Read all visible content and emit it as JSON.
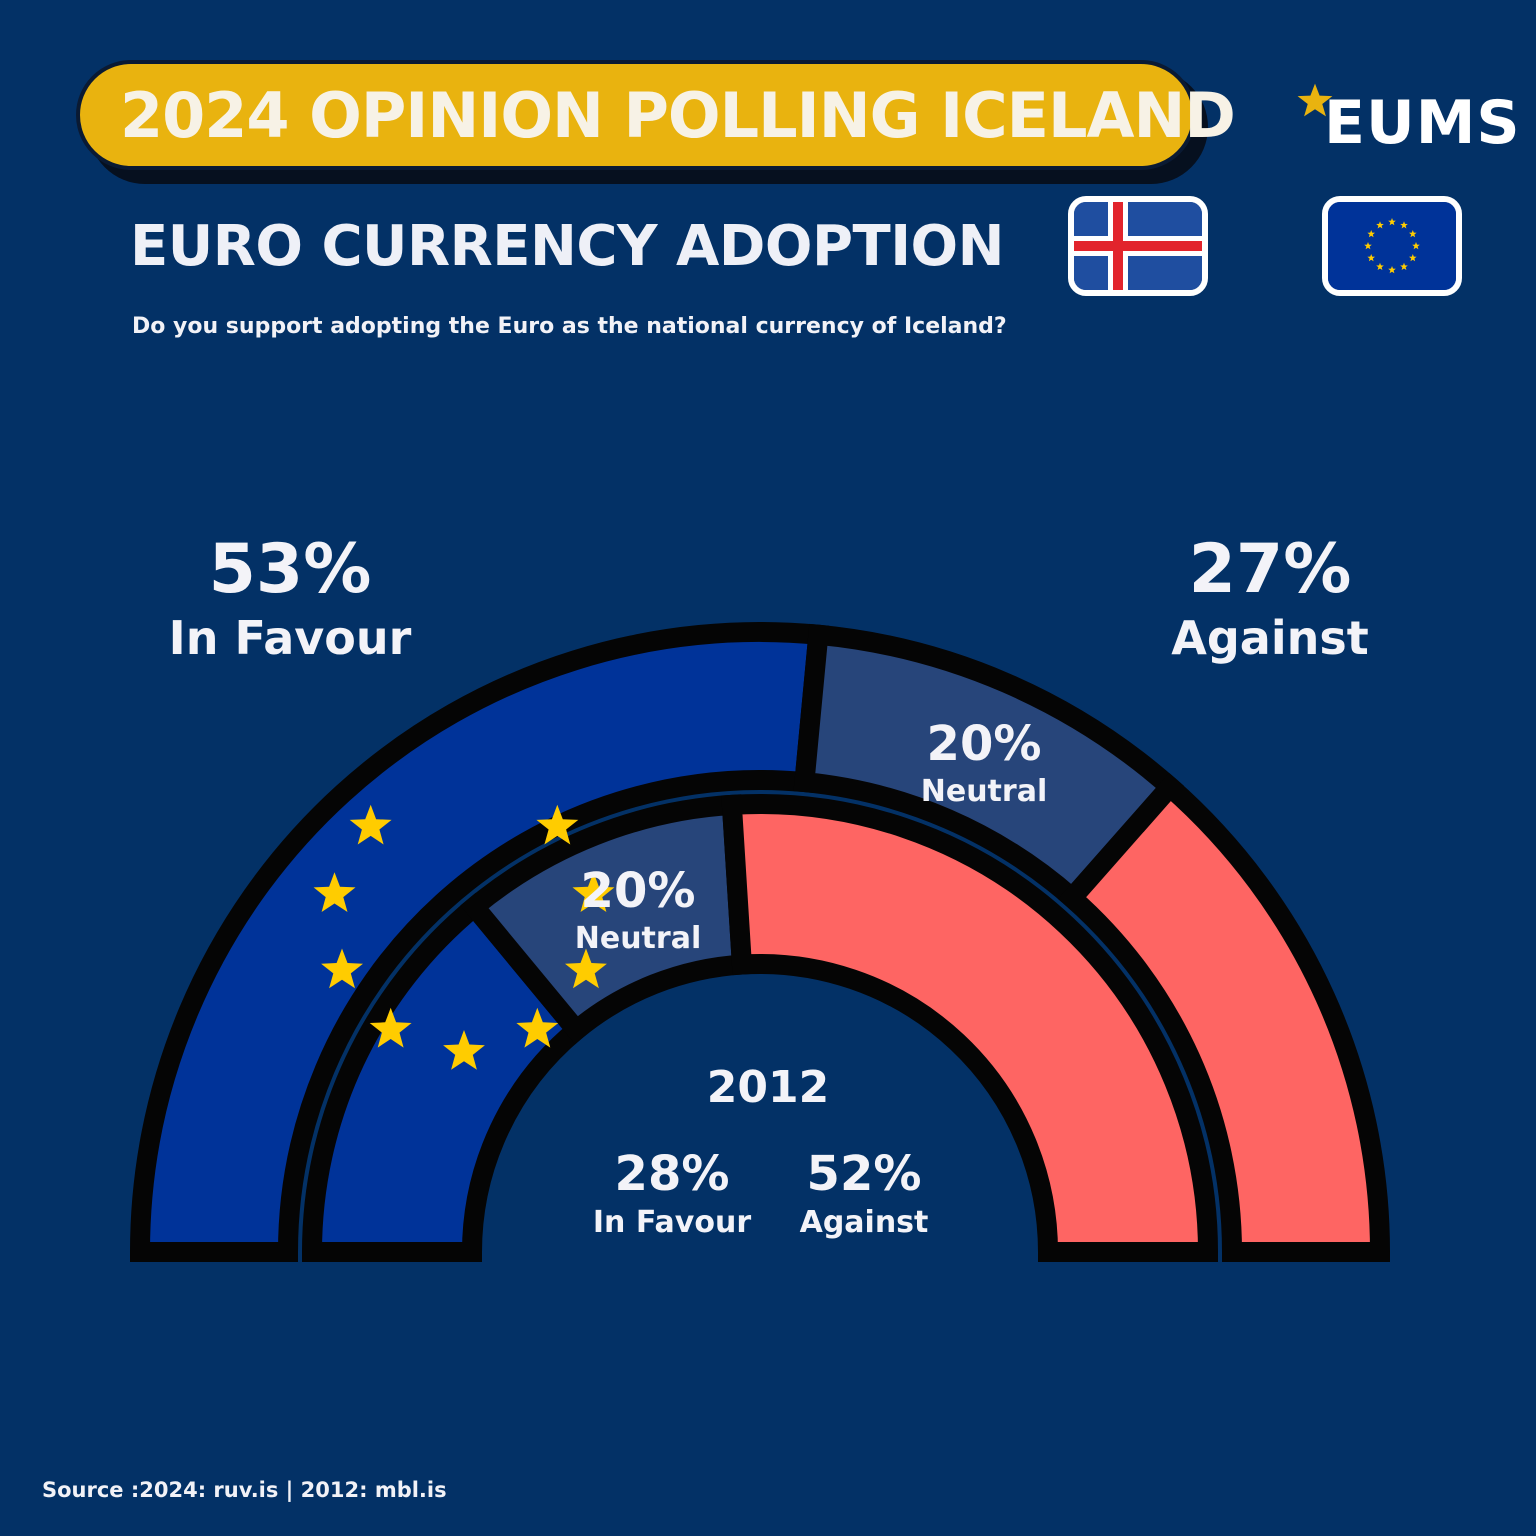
{
  "header": {
    "banner_title": "2024 OPINION POLLING ICELAND",
    "logo_text": "EUMS",
    "subtitle": "EURO CURRENCY ADOPTION",
    "question": "Do you support adopting the Euro as the national currency of Iceland?"
  },
  "flags": [
    {
      "icon": "iceland-flag-icon"
    },
    {
      "icon": "eu-flag-icon"
    }
  ],
  "colors": {
    "background": "#033166",
    "banner": "#e9b30f",
    "favour": "#003399",
    "neutral": "#27457a",
    "against": "#fe6563",
    "stars": "#ffcc00"
  },
  "chart_data": {
    "type": "pie",
    "shape": "semicircle-donut",
    "series": [
      {
        "name": "2024",
        "ring": "outer",
        "slices": [
          {
            "label": "In Favour",
            "value": 53
          },
          {
            "label": "Neutral",
            "value": 20
          },
          {
            "label": "Against",
            "value": 27
          }
        ]
      },
      {
        "name": "2012",
        "ring": "inner",
        "slices": [
          {
            "label": "In Favour",
            "value": 28
          },
          {
            "label": "Neutral",
            "value": 20
          },
          {
            "label": "Against",
            "value": 52
          }
        ]
      }
    ],
    "labels": {
      "outer_favour_pct": "53%",
      "outer_favour": "In Favour",
      "outer_against_pct": "27%",
      "outer_against": "Against",
      "outer_neutral_pct": "20%",
      "outer_neutral": "Neutral",
      "inner_neutral_pct": "20%",
      "inner_neutral": "Neutral",
      "inner_year": "2012",
      "inner_favour_pct": "28%",
      "inner_favour": "In Favour",
      "inner_against_pct": "52%",
      "inner_against": "Against"
    }
  },
  "footer": {
    "source": "Source :2024: ruv.is | 2012: mbl.is"
  }
}
